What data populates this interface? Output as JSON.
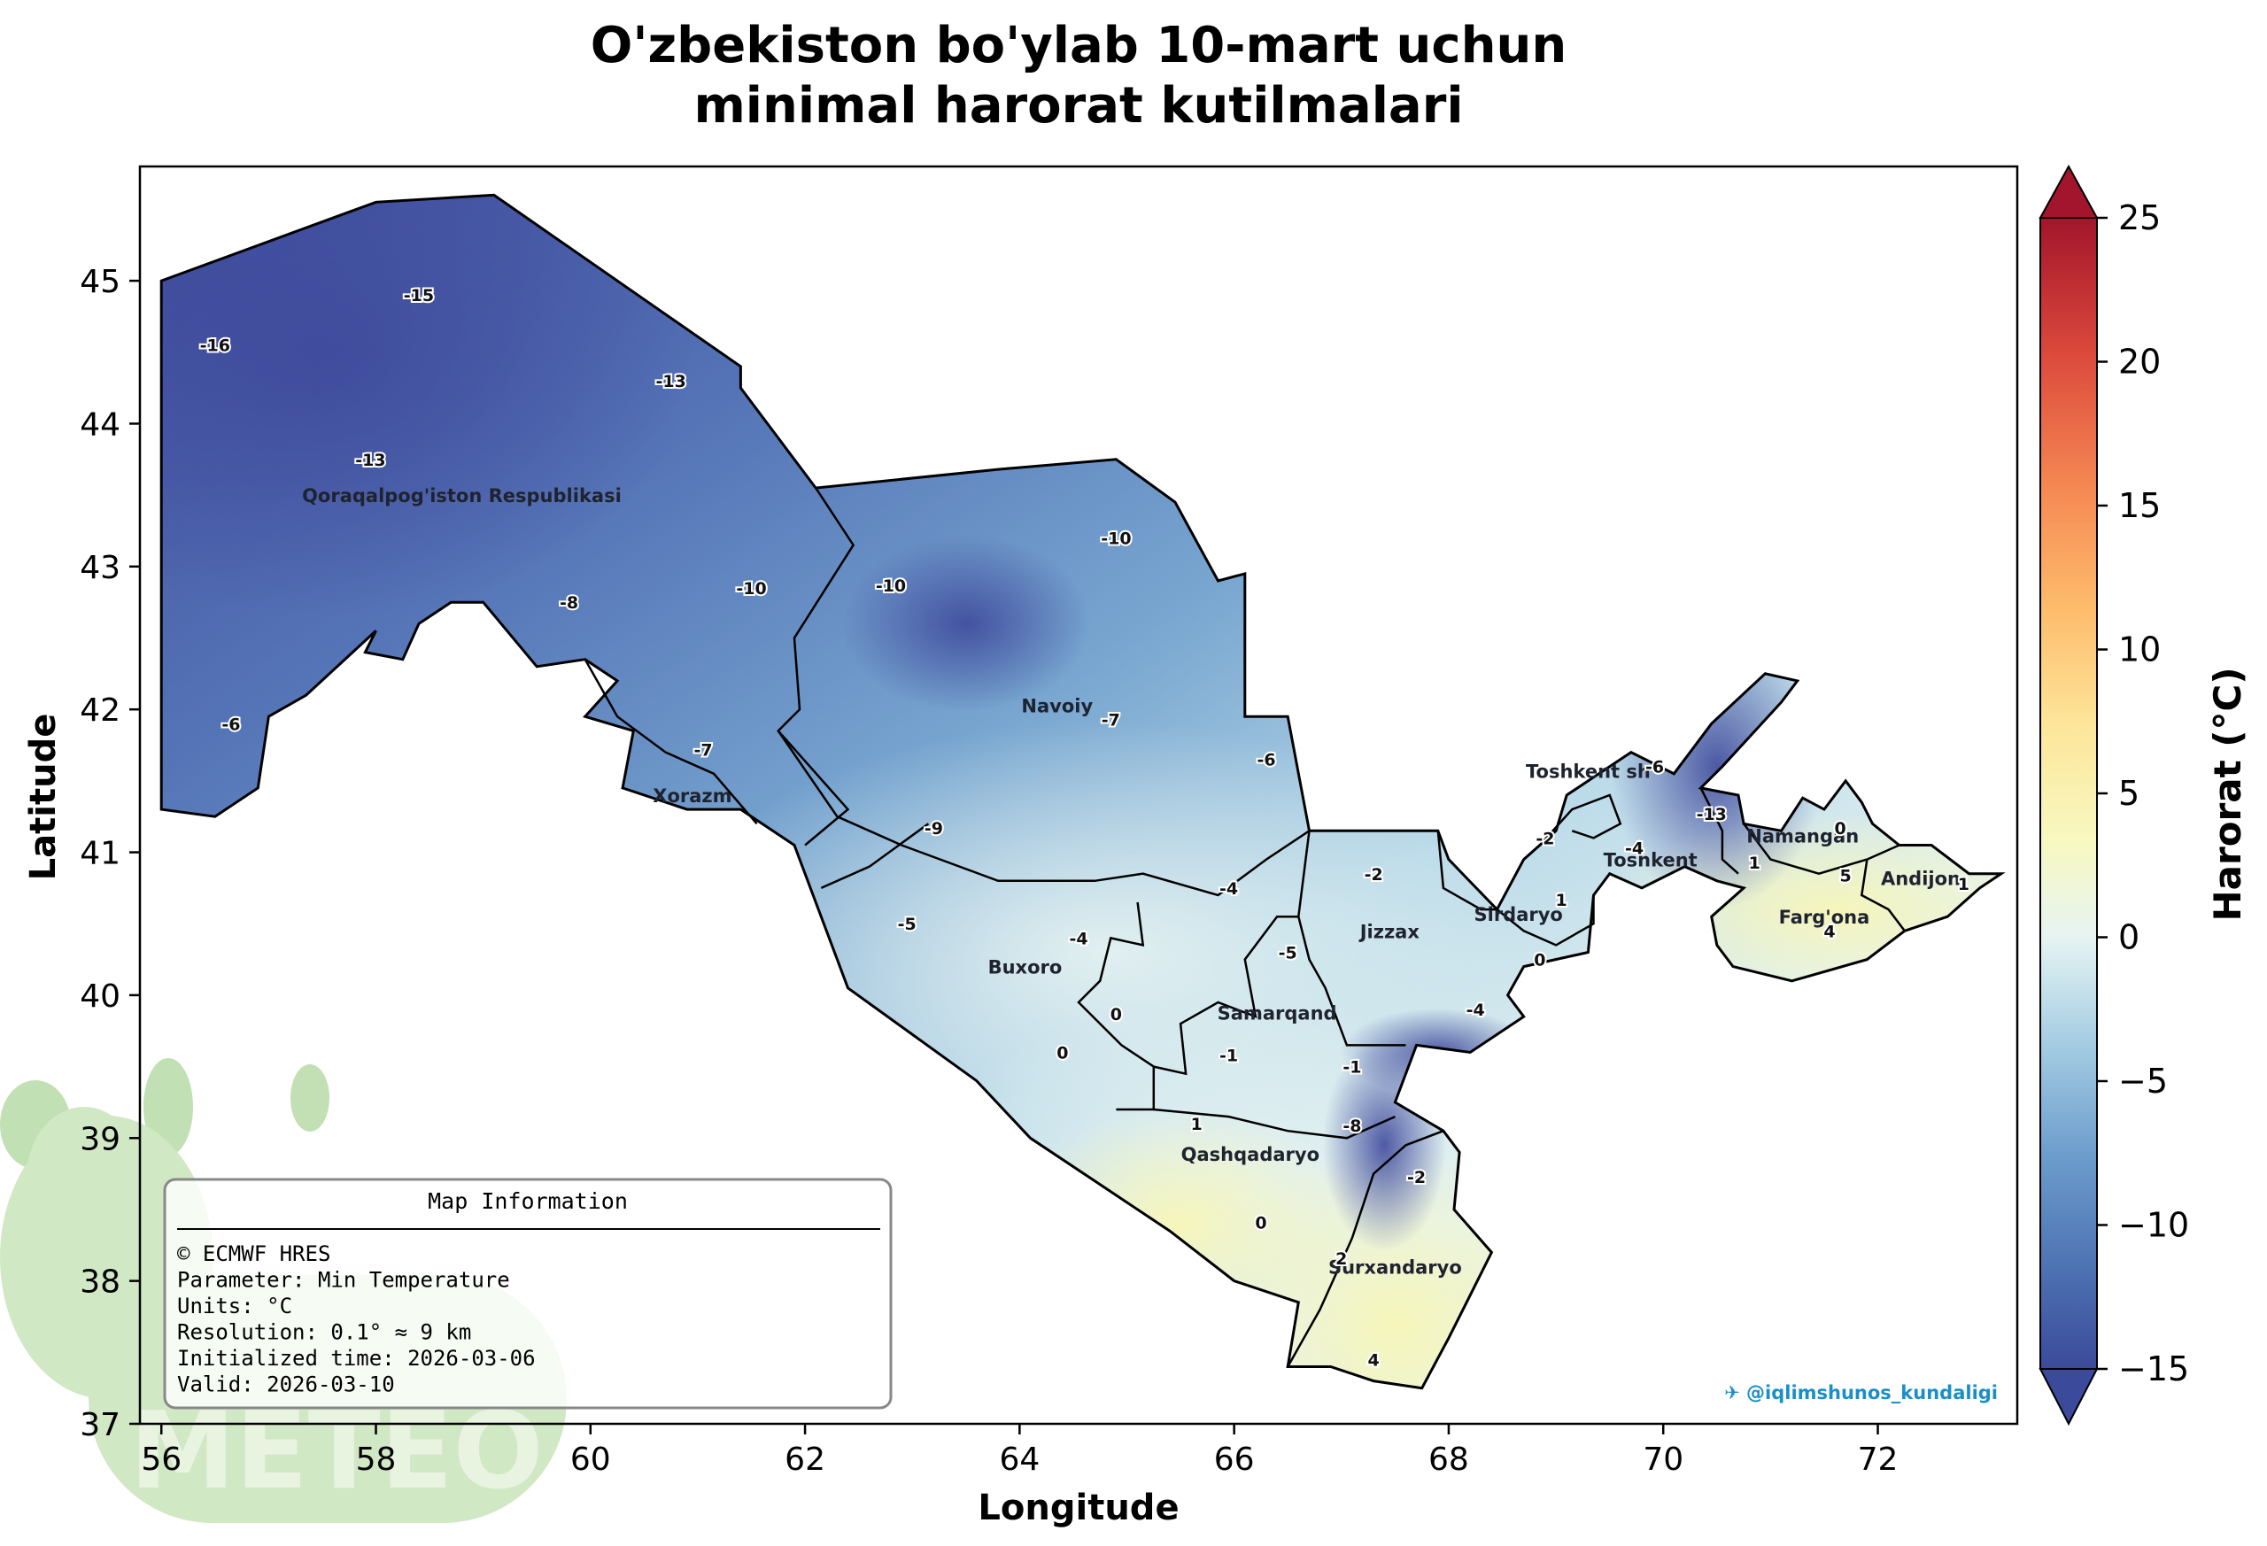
{
  "title_line1": "O'zbekiston bo'ylab 10-mart uchun",
  "title_line2": "minimal harorat kutilmalari",
  "xlabel": "Longitude",
  "ylabel": "Latitude",
  "colorbar_label": "Harorat (°C)",
  "watermark": "✈ @iqlimshunos_kundaligi",
  "logo_text": "METEO",
  "info_box": {
    "title": "Map Information",
    "lines": [
      "© ECMWF HRES",
      "Parameter: Min Temperature",
      "Units: °C",
      "Resolution: 0.1° ≈ 9 km",
      "Initialized time: 2026-03-06",
      "Valid: 2026-03-10"
    ]
  },
  "colors": {
    "cold": "#3f4a9c",
    "cool": "#5b86c0",
    "mild": "#a9cde3",
    "neutral": "#eaf5f4",
    "warm": "#f7f6b8",
    "hot": "#a3152c",
    "watermark": "#1a8fc7",
    "logo_green": "#b7dba7"
  },
  "chart_data": {
    "type": "map",
    "xlim": [
      55.8,
      73.3
    ],
    "ylim": [
      37.0,
      45.8
    ],
    "xticks": [
      56,
      58,
      60,
      62,
      64,
      66,
      68,
      70,
      72
    ],
    "yticks": [
      37,
      38,
      39,
      40,
      41,
      42,
      43,
      44,
      45
    ],
    "colorbar_ticks": [
      -15,
      -10,
      -5,
      0,
      5,
      10,
      15,
      20,
      25
    ],
    "colorbar_range": [
      -15,
      25
    ],
    "regions": [
      {
        "name": "Qoraqalpog'iston Respublikasi",
        "lon": 58.8,
        "lat": 43.45
      },
      {
        "name": "Xorazm",
        "lon": 60.95,
        "lat": 41.35
      },
      {
        "name": "Navoiy",
        "lon": 64.35,
        "lat": 41.98
      },
      {
        "name": "Buxoro",
        "lon": 64.05,
        "lat": 40.15
      },
      {
        "name": "Samarqand",
        "lon": 66.4,
        "lat": 39.83
      },
      {
        "name": "Jizzax",
        "lon": 67.45,
        "lat": 40.4
      },
      {
        "name": "Sirdaryo",
        "lon": 68.65,
        "lat": 40.52
      },
      {
        "name": "Toshkent sh",
        "lon": 69.3,
        "lat": 41.52
      },
      {
        "name": "Toshkent",
        "lon": 69.88,
        "lat": 40.9
      },
      {
        "name": "Namangan",
        "lon": 71.3,
        "lat": 41.07
      },
      {
        "name": "Andijon",
        "lon": 72.4,
        "lat": 40.77
      },
      {
        "name": "Farg'ona",
        "lon": 71.5,
        "lat": 40.5
      },
      {
        "name": "Qashqadaryo",
        "lon": 66.15,
        "lat": 38.84
      },
      {
        "name": "Surxandaryo",
        "lon": 67.5,
        "lat": 38.05
      }
    ],
    "values": [
      {
        "lon": 56.5,
        "lat": 44.55,
        "value": "-16"
      },
      {
        "lon": 58.4,
        "lat": 44.9,
        "value": "-15"
      },
      {
        "lon": 60.75,
        "lat": 44.3,
        "value": "-13"
      },
      {
        "lon": 57.95,
        "lat": 43.75,
        "value": "-13"
      },
      {
        "lon": 64.9,
        "lat": 43.2,
        "value": "-10"
      },
      {
        "lon": 61.5,
        "lat": 42.85,
        "value": "-10"
      },
      {
        "lon": 62.8,
        "lat": 42.87,
        "value": "-10"
      },
      {
        "lon": 59.8,
        "lat": 42.75,
        "value": "-8"
      },
      {
        "lon": 56.65,
        "lat": 41.9,
        "value": "-6"
      },
      {
        "lon": 61.05,
        "lat": 41.72,
        "value": "-7"
      },
      {
        "lon": 64.85,
        "lat": 41.93,
        "value": "-7"
      },
      {
        "lon": 66.3,
        "lat": 41.65,
        "value": "-6"
      },
      {
        "lon": 63.2,
        "lat": 41.17,
        "value": "-9"
      },
      {
        "lon": 62.95,
        "lat": 40.5,
        "value": "-5"
      },
      {
        "lon": 64.55,
        "lat": 40.4,
        "value": "-4"
      },
      {
        "lon": 65.95,
        "lat": 40.75,
        "value": "-4"
      },
      {
        "lon": 66.5,
        "lat": 40.3,
        "value": "-5"
      },
      {
        "lon": 67.3,
        "lat": 40.85,
        "value": "-2"
      },
      {
        "lon": 64.4,
        "lat": 39.6,
        "value": "0"
      },
      {
        "lon": 64.9,
        "lat": 39.87,
        "value": "0"
      },
      {
        "lon": 65.95,
        "lat": 39.58,
        "value": "-1"
      },
      {
        "lon": 67.1,
        "lat": 39.5,
        "value": "-1"
      },
      {
        "lon": 68.25,
        "lat": 39.9,
        "value": "-4"
      },
      {
        "lon": 68.85,
        "lat": 40.25,
        "value": "0"
      },
      {
        "lon": 69.05,
        "lat": 40.67,
        "value": "1"
      },
      {
        "lon": 68.9,
        "lat": 41.1,
        "value": "-2"
      },
      {
        "lon": 69.73,
        "lat": 41.03,
        "value": "-4"
      },
      {
        "lon": 69.92,
        "lat": 41.6,
        "value": "-6"
      },
      {
        "lon": 70.45,
        "lat": 41.27,
        "value": "-13"
      },
      {
        "lon": 71.65,
        "lat": 41.17,
        "value": "0"
      },
      {
        "lon": 70.85,
        "lat": 40.93,
        "value": "1"
      },
      {
        "lon": 71.7,
        "lat": 40.84,
        "value": "5"
      },
      {
        "lon": 72.8,
        "lat": 40.78,
        "value": "1"
      },
      {
        "lon": 71.55,
        "lat": 40.45,
        "value": "4"
      },
      {
        "lon": 65.65,
        "lat": 39.1,
        "value": "1"
      },
      {
        "lon": 67.1,
        "lat": 39.09,
        "value": "-8"
      },
      {
        "lon": 67.7,
        "lat": 38.73,
        "value": "-2"
      },
      {
        "lon": 66.25,
        "lat": 38.41,
        "value": "0"
      },
      {
        "lon": 67.0,
        "lat": 38.16,
        "value": "2"
      },
      {
        "lon": 67.3,
        "lat": 37.45,
        "value": "4"
      }
    ]
  }
}
